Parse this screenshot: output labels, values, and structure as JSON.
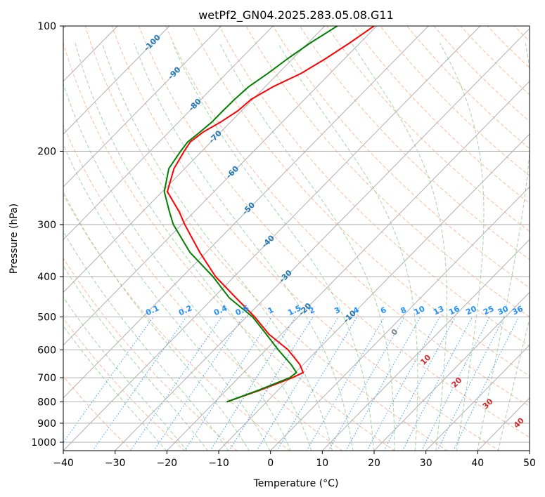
{
  "chart_data": {
    "type": "line",
    "title": "wetPf2_GN04.2025.283.05.08.G11",
    "xlabel": "Temperature (°C)",
    "ylabel": "Pressure (hPa)",
    "xlim": [
      -40,
      50
    ],
    "ylim": [
      1050,
      100
    ],
    "x_ticks": [
      -40,
      -30,
      -20,
      -10,
      0,
      10,
      20,
      30,
      40,
      50
    ],
    "x_tick_labels": [
      "−40",
      "−30",
      "−20",
      "−10",
      "0",
      "10",
      "20",
      "30",
      "40",
      "50"
    ],
    "y_ticks": [
      100,
      200,
      300,
      400,
      500,
      600,
      700,
      800,
      900,
      1000
    ],
    "y_tick_labels": [
      "100",
      "200",
      "300",
      "400",
      "500",
      "600",
      "700",
      "800",
      "900",
      "1000"
    ],
    "colors": {
      "temperature": "#ff0000",
      "dewpoint": "#008000",
      "isotherm_labels": "#1f77b4",
      "mixing_ratio": "#1e90ff",
      "moist_adiabat_labels": "#d62728",
      "dry_adiabat": "#f4a582",
      "moist_adiabat": "#8fc98f",
      "grid": "#b0b0b0"
    },
    "series": [
      {
        "name": "Temperature",
        "points": [
          {
            "p": 100,
            "t": -60.5
          },
          {
            "p": 110,
            "t": -62.0
          },
          {
            "p": 120,
            "t": -63.7
          },
          {
            "p": 130,
            "t": -65.6
          },
          {
            "p": 140,
            "t": -68.5
          },
          {
            "p": 150,
            "t": -70.3
          },
          {
            "p": 160,
            "t": -70.7
          },
          {
            "p": 170,
            "t": -71.9
          },
          {
            "p": 180,
            "t": -73.4
          },
          {
            "p": 190,
            "t": -74.0
          },
          {
            "p": 200,
            "t": -73.4
          },
          {
            "p": 220,
            "t": -72.1
          },
          {
            "p": 250,
            "t": -69.0
          },
          {
            "p": 280,
            "t": -62.8
          },
          {
            "p": 300,
            "t": -59.4
          },
          {
            "p": 350,
            "t": -51.2
          },
          {
            "p": 400,
            "t": -43.6
          },
          {
            "p": 450,
            "t": -35.6
          },
          {
            "p": 500,
            "t": -28.4
          },
          {
            "p": 550,
            "t": -22.4
          },
          {
            "p": 600,
            "t": -15.7
          },
          {
            "p": 650,
            "t": -10.7
          },
          {
            "p": 680,
            "t": -8.5
          },
          {
            "p": 700,
            "t": -9.6
          },
          {
            "p": 750,
            "t": -13.5
          },
          {
            "p": 800,
            "t": -17.7
          }
        ]
      },
      {
        "name": "Dewpoint",
        "points": [
          {
            "p": 100,
            "t": -67.6
          },
          {
            "p": 110,
            "t": -69.6
          },
          {
            "p": 120,
            "t": -71.0
          },
          {
            "p": 130,
            "t": -72.0
          },
          {
            "p": 140,
            "t": -73.2
          },
          {
            "p": 150,
            "t": -73.5
          },
          {
            "p": 160,
            "t": -73.6
          },
          {
            "p": 170,
            "t": -73.6
          },
          {
            "p": 180,
            "t": -74.0
          },
          {
            "p": 190,
            "t": -74.5
          },
          {
            "p": 200,
            "t": -74.1
          },
          {
            "p": 220,
            "t": -73.1
          },
          {
            "p": 250,
            "t": -69.6
          },
          {
            "p": 280,
            "t": -64.7
          },
          {
            "p": 300,
            "t": -61.6
          },
          {
            "p": 350,
            "t": -53.1
          },
          {
            "p": 400,
            "t": -44.1
          },
          {
            "p": 450,
            "t": -36.9
          },
          {
            "p": 500,
            "t": -28.8
          },
          {
            "p": 550,
            "t": -22.9
          },
          {
            "p": 600,
            "t": -17.6
          },
          {
            "p": 650,
            "t": -12.4
          },
          {
            "p": 680,
            "t": -9.8
          },
          {
            "p": 700,
            "t": -10.1
          },
          {
            "p": 750,
            "t": -13.8
          },
          {
            "p": 800,
            "t": -17.7
          }
        ]
      }
    ],
    "isotherm_labels": [
      "-100",
      "-90",
      "-80",
      "-70",
      "-60",
      "-50",
      "-40",
      "-30",
      "-20",
      "-10"
    ],
    "mixing_ratio_labels": [
      "0.1",
      "0.2",
      "0.4",
      "0.6",
      "1",
      "1.5",
      "2",
      "3",
      "4",
      "6",
      "8",
      "10",
      "13",
      "16",
      "20",
      "25",
      "30",
      "36"
    ],
    "moist_adiabat_labels": [
      "0",
      "10",
      "20",
      "30",
      "40"
    ],
    "grid": true
  }
}
